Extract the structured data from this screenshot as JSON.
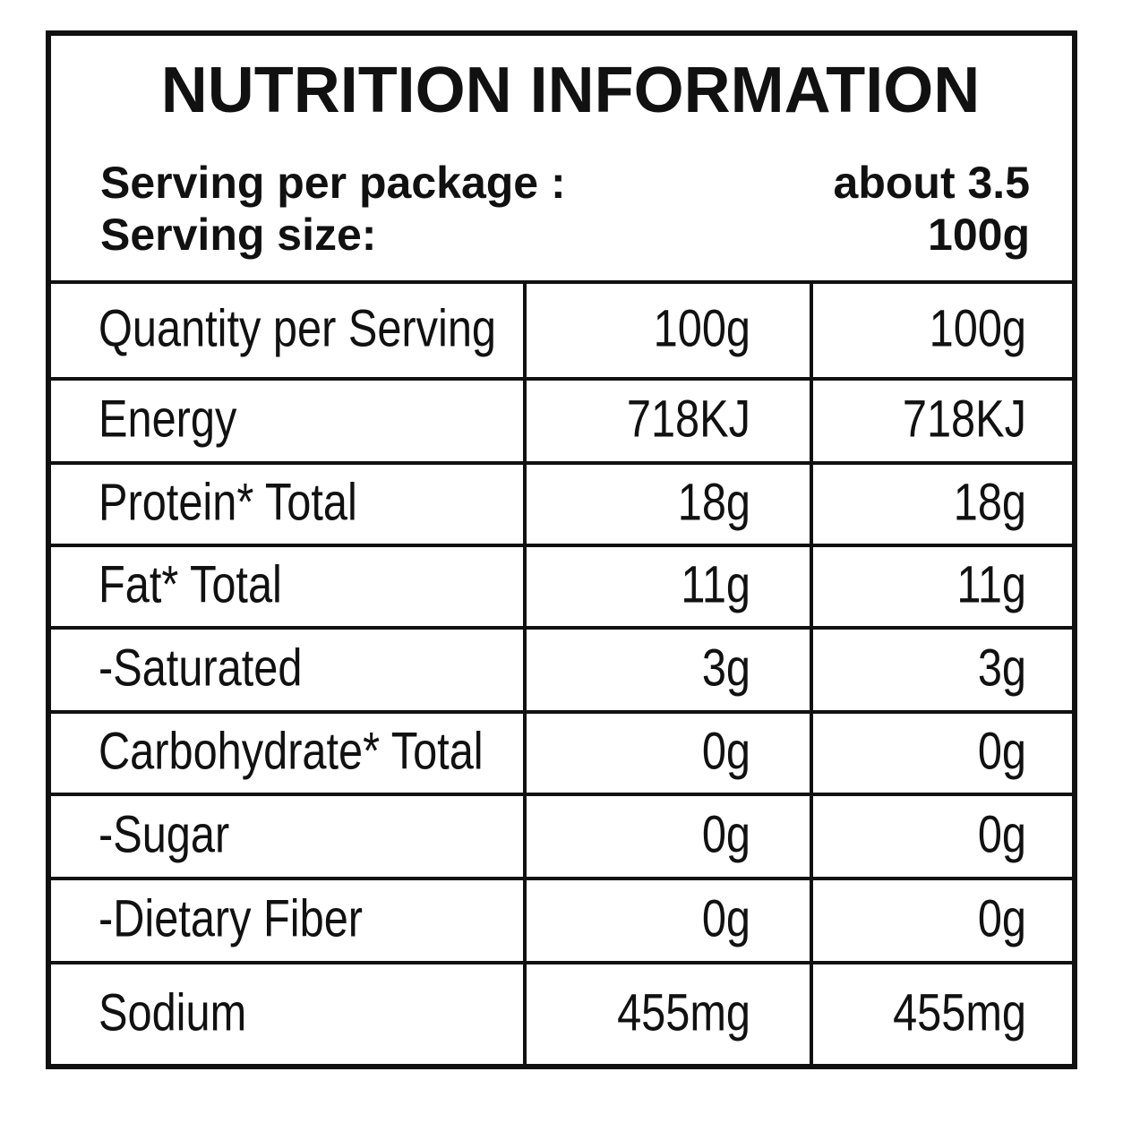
{
  "header": {
    "title": "NUTRITION INFORMATION",
    "serving_per_package": {
      "label": "Serving per package :",
      "value": "about 3.5"
    },
    "serving_size": {
      "label": "Serving size:",
      "value": "100g"
    }
  },
  "table": {
    "rows": [
      [
        "Quantity per Serving",
        "100g",
        "100g"
      ],
      [
        "Energy",
        "718KJ",
        "718KJ"
      ],
      [
        "Protein* Total",
        "18g",
        "18g"
      ],
      [
        "Fat* Total",
        "11g",
        "11g"
      ],
      [
        "-Saturated",
        "3g",
        "3g"
      ],
      [
        "Carbohydrate* Total",
        "0g",
        "0g"
      ],
      [
        "-Sugar",
        "0g",
        "0g"
      ],
      [
        "-Dietary Fiber",
        "0g",
        "0g"
      ],
      [
        "Sodium",
        "455mg",
        "455mg"
      ]
    ]
  }
}
